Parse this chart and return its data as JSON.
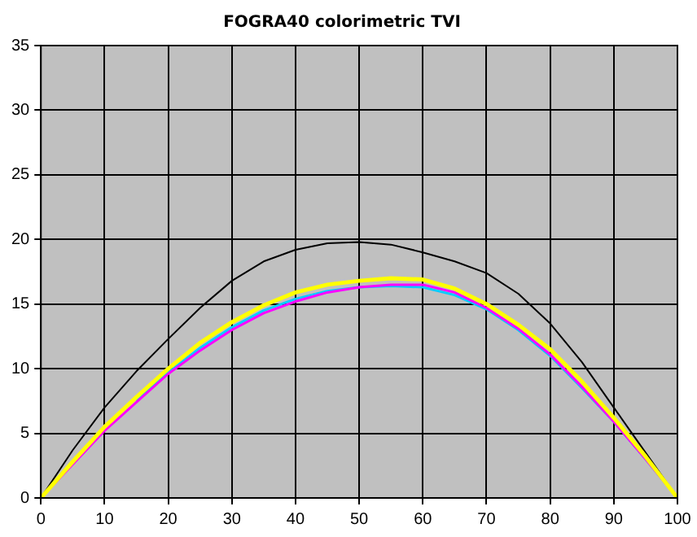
{
  "chart_data": {
    "type": "line",
    "title": "FOGRA40 colorimetric TVI",
    "x": [
      0,
      5,
      10,
      15,
      20,
      25,
      30,
      35,
      40,
      45,
      50,
      55,
      60,
      65,
      70,
      75,
      80,
      85,
      90,
      95,
      100
    ],
    "series": [
      {
        "color": "#000000",
        "values": [
          0,
          3.7,
          7,
          9.8,
          12.3,
          14.7,
          16.8,
          18.3,
          19.2,
          19.7,
          19.8,
          19.6,
          19.0,
          18.3,
          17.4,
          15.8,
          13.5,
          10.5,
          7,
          3.5,
          0
        ]
      },
      {
        "color": "#00ccff",
        "values": [
          null,
          null,
          null,
          7.5,
          9.7,
          11.6,
          13.2,
          14.5,
          15.4,
          16,
          16.3,
          16.4,
          16.3,
          15.7,
          14.6,
          13,
          11,
          8.5,
          5.9,
          3,
          0
        ]
      },
      {
        "color": "#ff00ff",
        "values": [
          0,
          2.6,
          5.2,
          7.4,
          9.6,
          11.4,
          13,
          14.3,
          15.2,
          15.9,
          16.3,
          16.5,
          16.5,
          15.9,
          14.7,
          13.1,
          11.1,
          8.6,
          5.9,
          3,
          0
        ]
      },
      {
        "color": "#ffff00",
        "values": [
          0,
          2.8,
          5.5,
          7.8,
          10,
          12,
          13.6,
          14.9,
          15.9,
          16.5,
          16.8,
          17,
          16.9,
          16.2,
          15,
          13.4,
          11.5,
          9,
          6.2,
          3.2,
          0
        ]
      }
    ],
    "xlim": [
      0,
      100
    ],
    "xticks": [
      0,
      10,
      20,
      30,
      40,
      50,
      60,
      70,
      80,
      90,
      100
    ],
    "ylim": [
      0,
      35
    ],
    "yticks": [
      0,
      5,
      10,
      15,
      20,
      25,
      30,
      35
    ],
    "grid": true,
    "legend": false,
    "marker": "none",
    "line_style": "solid"
  }
}
